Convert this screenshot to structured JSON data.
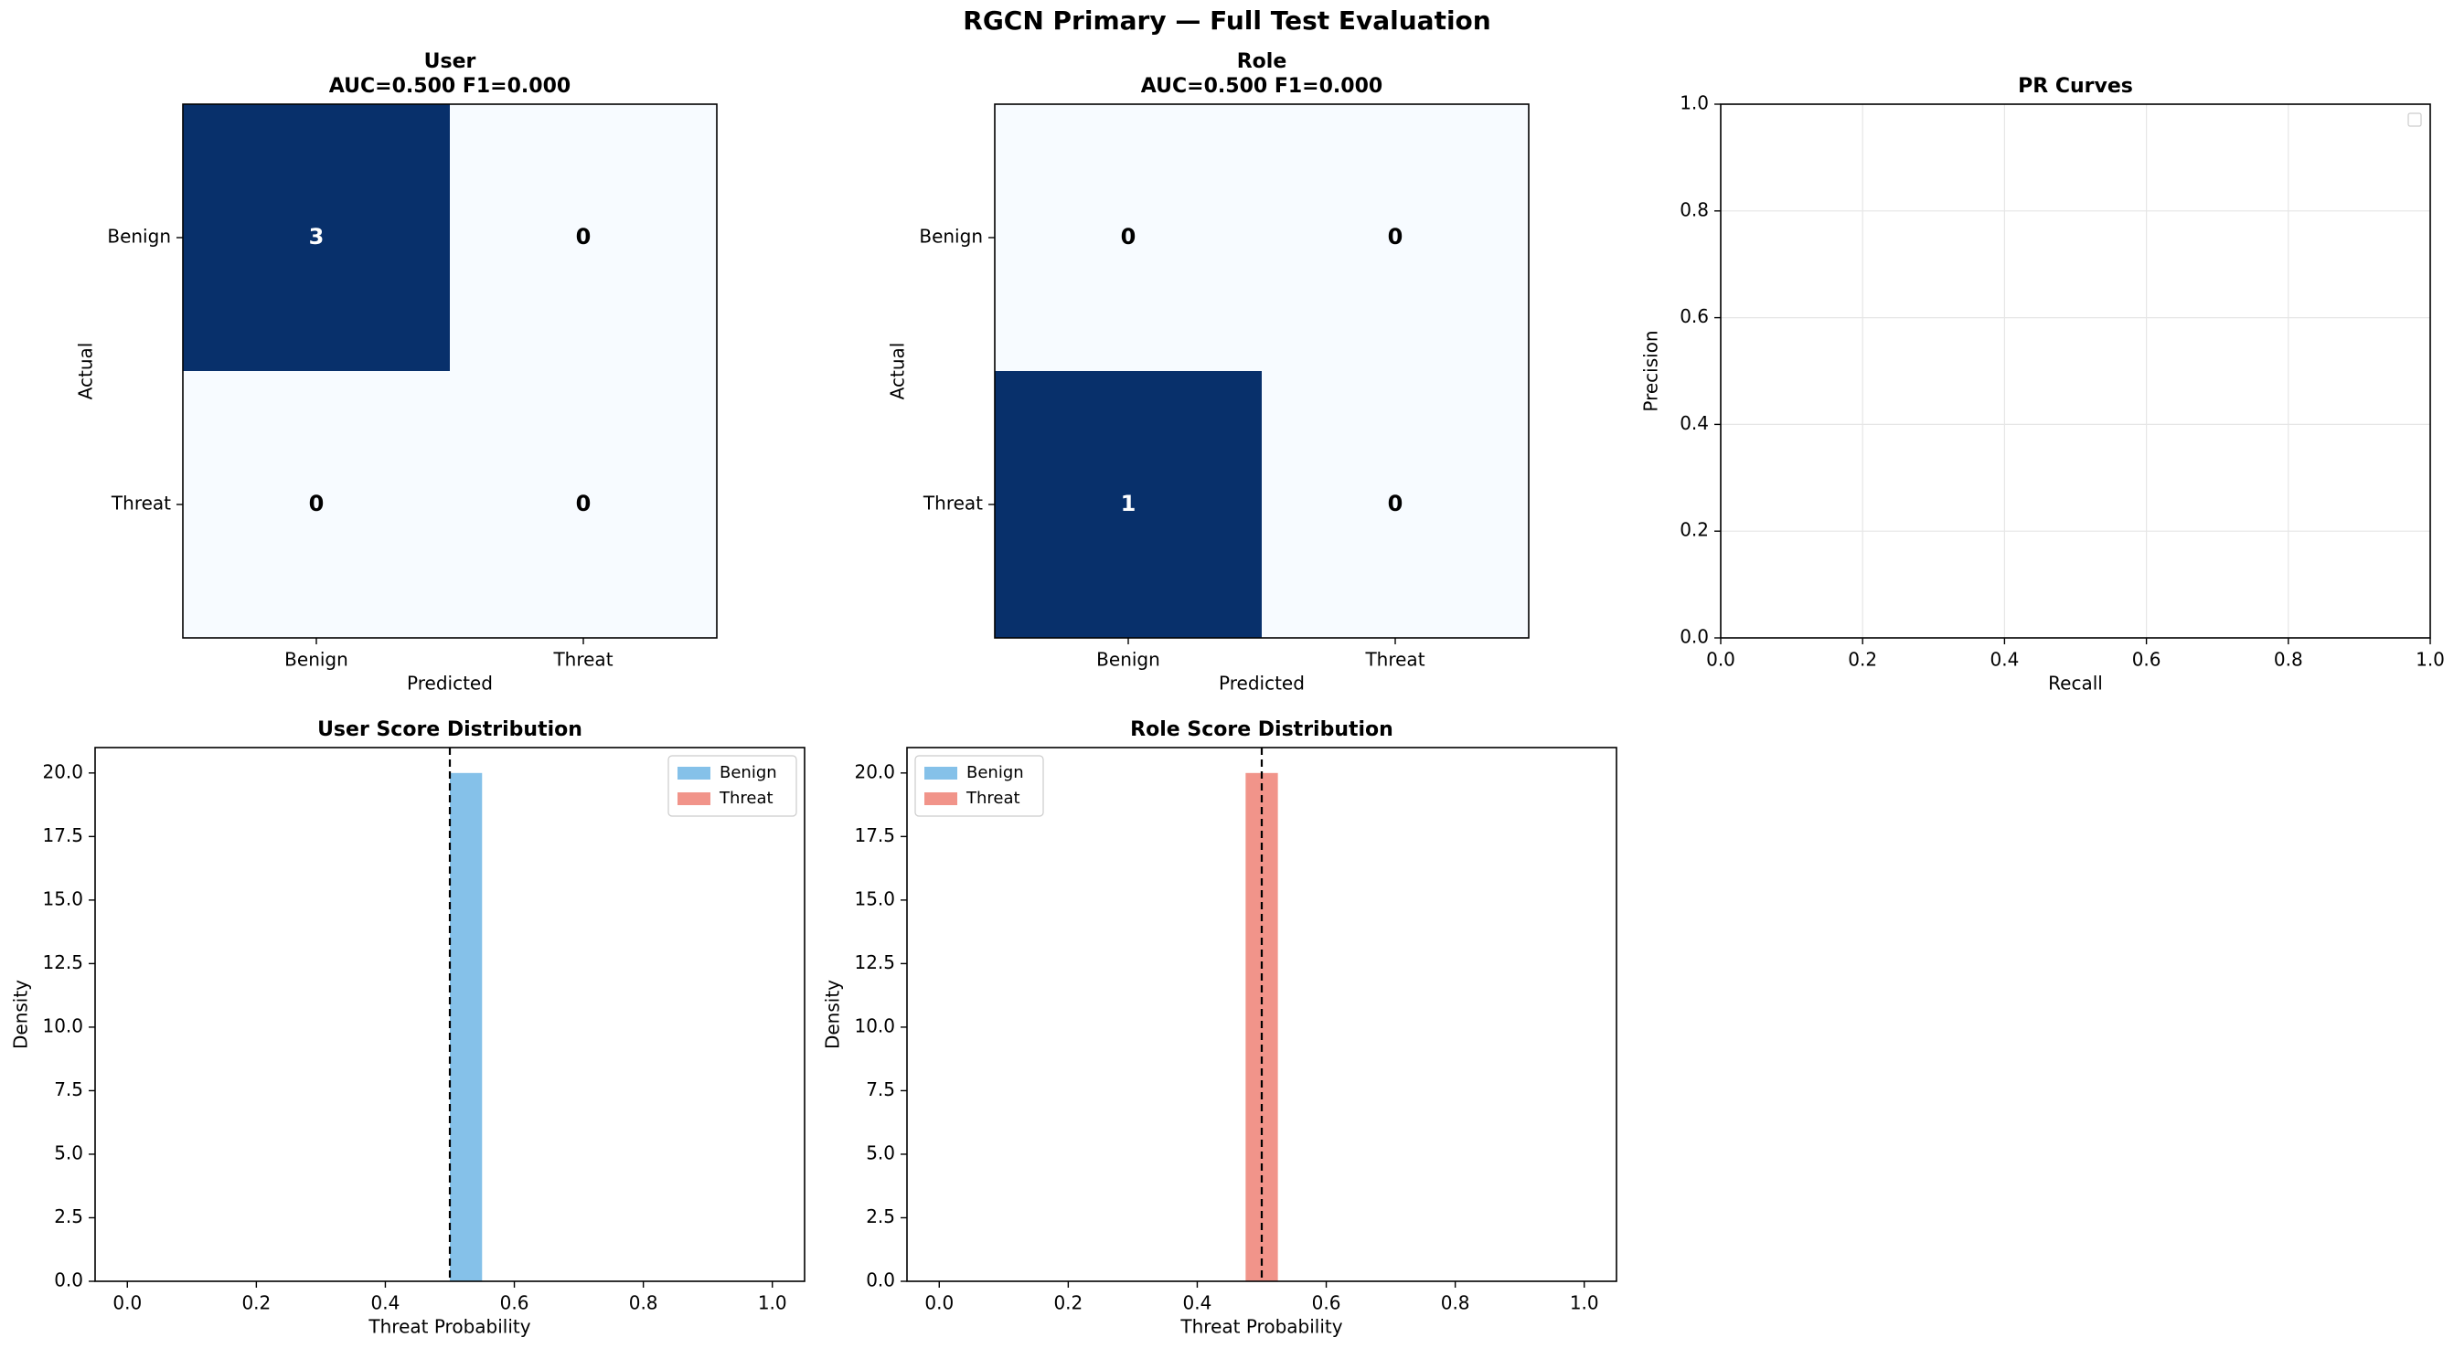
{
  "figure": {
    "title": "RGCN Primary — Full Test Evaluation"
  },
  "colors": {
    "cm_high": "#08306b",
    "cm_low": "#f7fbff",
    "benign": "#85c1e9",
    "threat": "#f1948a",
    "grid": "#e6e6e6",
    "threshold": "#000000"
  },
  "chart_data": [
    {
      "type": "heatmap",
      "title": "User",
      "subtitle": "AUC=0.500  F1=0.000",
      "xlabel": "Predicted",
      "ylabel": "Actual",
      "categories": [
        "Benign",
        "Threat"
      ],
      "matrix": [
        [
          3,
          0
        ],
        [
          0,
          0
        ]
      ]
    },
    {
      "type": "heatmap",
      "title": "Role",
      "subtitle": "AUC=0.500  F1=0.000",
      "xlabel": "Predicted",
      "ylabel": "Actual",
      "categories": [
        "Benign",
        "Threat"
      ],
      "matrix": [
        [
          0,
          0
        ],
        [
          1,
          0
        ]
      ]
    },
    {
      "type": "line",
      "title": "PR Curves",
      "xlabel": "Recall",
      "ylabel": "Precision",
      "xlim": [
        0,
        1
      ],
      "ylim": [
        0,
        1
      ],
      "xticks": [
        "0.0",
        "0.2",
        "0.4",
        "0.6",
        "0.8",
        "1.0"
      ],
      "yticks": [
        "0.0",
        "0.2",
        "0.4",
        "0.6",
        "0.8",
        "1.0"
      ],
      "grid": true,
      "legend": "upper right (empty)",
      "series": []
    },
    {
      "type": "bar",
      "title": "User Score Distribution",
      "xlabel": "Threat Probability",
      "ylabel": "Density",
      "xlim": [
        -0.05,
        1.05
      ],
      "ylim": [
        0,
        21
      ],
      "xticks": [
        "0.0",
        "0.2",
        "0.4",
        "0.6",
        "0.8",
        "1.0"
      ],
      "yticks": [
        "0.0",
        "2.5",
        "5.0",
        "7.5",
        "10.0",
        "12.5",
        "15.0",
        "17.5",
        "20.0"
      ],
      "threshold": 0.5,
      "legend": "upper right",
      "series": [
        {
          "name": "Benign",
          "bins": [
            [
              0.5,
              0.55,
              20
            ]
          ]
        },
        {
          "name": "Threat",
          "bins": []
        }
      ]
    },
    {
      "type": "bar",
      "title": "Role Score Distribution",
      "xlabel": "Threat Probability",
      "ylabel": "Density",
      "xlim": [
        -0.05,
        1.05
      ],
      "ylim": [
        0,
        21
      ],
      "xticks": [
        "0.0",
        "0.2",
        "0.4",
        "0.6",
        "0.8",
        "1.0"
      ],
      "yticks": [
        "0.0",
        "2.5",
        "5.0",
        "7.5",
        "10.0",
        "12.5",
        "15.0",
        "17.5",
        "20.0"
      ],
      "threshold": 0.5,
      "legend": "upper left",
      "series": [
        {
          "name": "Benign",
          "bins": []
        },
        {
          "name": "Threat",
          "bins": [
            [
              0.475,
              0.525,
              20
            ]
          ]
        }
      ]
    }
  ]
}
